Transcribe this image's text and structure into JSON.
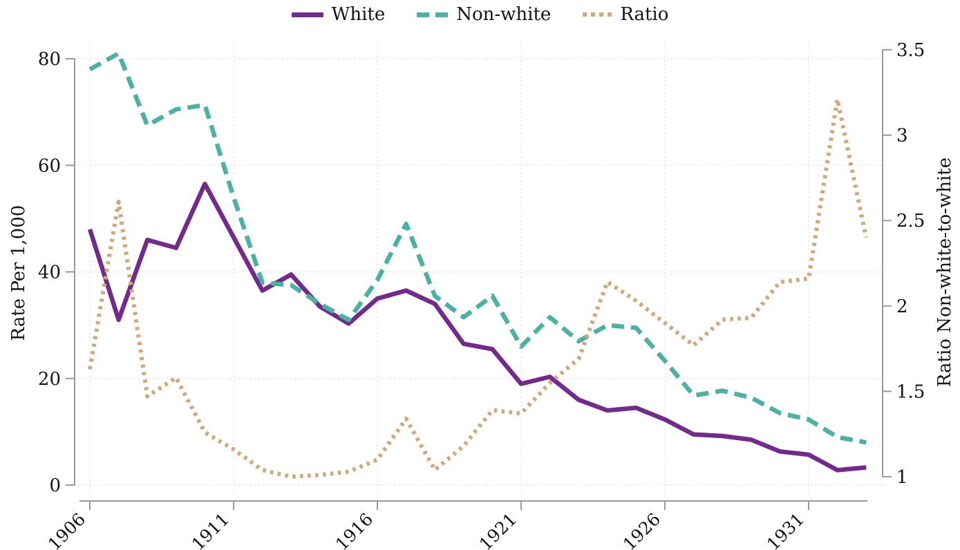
{
  "chart_data": {
    "type": "line",
    "x": [
      1906,
      1907,
      1908,
      1909,
      1910,
      1911,
      1912,
      1913,
      1914,
      1915,
      1916,
      1917,
      1918,
      1919,
      1920,
      1921,
      1922,
      1923,
      1924,
      1925,
      1926,
      1927,
      1928,
      1929,
      1930,
      1931,
      1932,
      1933
    ],
    "series": [
      {
        "name": "White",
        "axis": "left",
        "style": "solid",
        "color": "#722b8d",
        "values": [
          48,
          31,
          46,
          44.5,
          56.5,
          46.5,
          36.5,
          39.5,
          33.5,
          30.3,
          35,
          36.5,
          34,
          26.5,
          25.5,
          19,
          20.3,
          16,
          14,
          14.5,
          12.3,
          9.5,
          9.2,
          8.5,
          6.3,
          5.7,
          2.8,
          3.3
        ]
      },
      {
        "name": "Non-white",
        "axis": "left",
        "style": "dashed",
        "color": "#4bb1a3",
        "values": [
          78,
          81,
          67.5,
          70.5,
          71.3,
          54,
          38,
          37.5,
          34,
          31,
          38.5,
          49,
          35.5,
          31.5,
          35.5,
          26,
          31.5,
          27,
          30,
          29.5,
          23.3,
          16.8,
          17.7,
          16.4,
          13.5,
          12.3,
          9,
          8
        ]
      },
      {
        "name": "Ratio",
        "axis": "right",
        "style": "dotted",
        "color": "#d2a87a",
        "values": [
          1.63,
          2.61,
          1.47,
          1.58,
          1.26,
          1.16,
          1.04,
          1.0,
          1.01,
          1.03,
          1.1,
          1.34,
          1.04,
          1.18,
          1.39,
          1.37,
          1.55,
          1.69,
          2.14,
          2.03,
          1.9,
          1.77,
          1.92,
          1.93,
          2.14,
          2.16,
          3.21,
          2.4
        ]
      }
    ],
    "left_axis": {
      "title": "Rate Per 1,000",
      "ticks": [
        0,
        20,
        40,
        60,
        80
      ],
      "range": [
        0,
        80
      ]
    },
    "right_axis": {
      "title": "Ratio Non-white-to-white",
      "ticks": [
        1,
        1.5,
        2,
        2.5,
        3,
        3.5
      ],
      "range": [
        1,
        3.5
      ]
    },
    "x_axis": {
      "ticks": [
        1906,
        1911,
        1916,
        1921,
        1926,
        1931
      ],
      "range": [
        1906,
        1933
      ],
      "label_angle": -45
    },
    "grid": true,
    "legend_position": "top",
    "colors": {
      "grid": "#dcdcdc",
      "axis": "#999999",
      "text": "#141414"
    }
  }
}
